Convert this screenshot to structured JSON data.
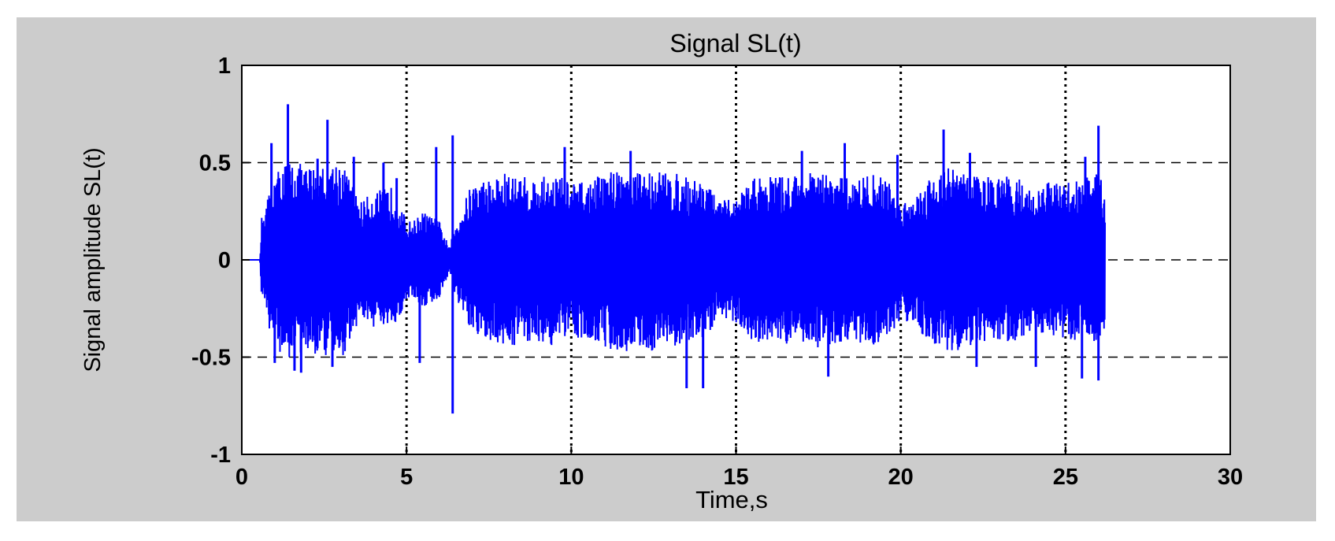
{
  "chart_data": {
    "type": "line",
    "title": "Signal SL(t)",
    "xlabel": "Time,s",
    "ylabel": "Signal amplitude SL(t)",
    "xlim": [
      0,
      30
    ],
    "ylim": [
      -1,
      1
    ],
    "xticks": [
      0,
      5,
      10,
      15,
      20,
      25,
      30
    ],
    "xtick_labels": [
      "0",
      "5",
      "10",
      "15",
      "20",
      "25",
      "30"
    ],
    "yticks": [
      -1,
      -0.5,
      0,
      0.5,
      1
    ],
    "ytick_labels": [
      "-1",
      "-0.5",
      "0",
      "0.5",
      "1"
    ],
    "grid": true,
    "series": [
      {
        "color": "#0000ff",
        "envelope": {
          "t": [
            0,
            0.55,
            0.6,
            1.0,
            1.4,
            2.0,
            2.5,
            3.0,
            3.6,
            4.0,
            4.6,
            5.0,
            5.2,
            5.5,
            6.0,
            6.3,
            6.5,
            7.0,
            7.5,
            8.0,
            8.5,
            9.0,
            9.5,
            10.0,
            10.5,
            11.0,
            11.5,
            12.0,
            12.5,
            13.0,
            13.5,
            14.0,
            14.5,
            15.0,
            15.5,
            16.0,
            16.5,
            17.0,
            17.5,
            18.0,
            18.5,
            19.0,
            19.5,
            20.0,
            20.5,
            21.0,
            21.5,
            22.0,
            22.5,
            23.0,
            23.5,
            24.0,
            24.5,
            25.0,
            25.5,
            26.0,
            26.2
          ],
          "amplitude": [
            0,
            0,
            0.22,
            0.45,
            0.52,
            0.48,
            0.5,
            0.52,
            0.3,
            0.35,
            0.38,
            0.2,
            0.2,
            0.25,
            0.2,
            0.06,
            0.2,
            0.4,
            0.42,
            0.45,
            0.43,
            0.42,
            0.45,
            0.4,
            0.4,
            0.45,
            0.48,
            0.45,
            0.47,
            0.45,
            0.43,
            0.42,
            0.3,
            0.32,
            0.42,
            0.44,
            0.43,
            0.45,
            0.45,
            0.43,
            0.42,
            0.44,
            0.44,
            0.3,
            0.35,
            0.45,
            0.48,
            0.45,
            0.43,
            0.42,
            0.44,
            0.35,
            0.4,
            0.4,
            0.43,
            0.45,
            0.35
          ]
        },
        "peaks": [
          {
            "t": 0.9,
            "y": 0.6
          },
          {
            "t": 1.0,
            "y": -0.53
          },
          {
            "t": 1.4,
            "y": 0.8
          },
          {
            "t": 1.6,
            "y": -0.57
          },
          {
            "t": 1.8,
            "y": -0.58
          },
          {
            "t": 2.3,
            "y": 0.52
          },
          {
            "t": 2.6,
            "y": 0.72
          },
          {
            "t": 2.75,
            "y": -0.55
          },
          {
            "t": 3.4,
            "y": 0.53
          },
          {
            "t": 4.3,
            "y": 0.5
          },
          {
            "t": 4.7,
            "y": 0.42
          },
          {
            "t": 5.4,
            "y": -0.53
          },
          {
            "t": 5.9,
            "y": 0.58
          },
          {
            "t": 6.4,
            "y": 0.64
          },
          {
            "t": 6.4,
            "y": -0.79
          },
          {
            "t": 9.8,
            "y": 0.58
          },
          {
            "t": 11.8,
            "y": 0.56
          },
          {
            "t": 13.5,
            "y": -0.66
          },
          {
            "t": 14.0,
            "y": -0.66
          },
          {
            "t": 17.0,
            "y": 0.56
          },
          {
            "t": 17.8,
            "y": -0.6
          },
          {
            "t": 18.3,
            "y": 0.6
          },
          {
            "t": 19.9,
            "y": 0.54
          },
          {
            "t": 21.3,
            "y": 0.67
          },
          {
            "t": 22.1,
            "y": 0.55
          },
          {
            "t": 22.3,
            "y": -0.55
          },
          {
            "t": 24.1,
            "y": -0.55
          },
          {
            "t": 25.5,
            "y": -0.61
          },
          {
            "t": 25.6,
            "y": 0.53
          },
          {
            "t": 26.0,
            "y": 0.69
          },
          {
            "t": 26.0,
            "y": -0.62
          }
        ]
      }
    ]
  }
}
